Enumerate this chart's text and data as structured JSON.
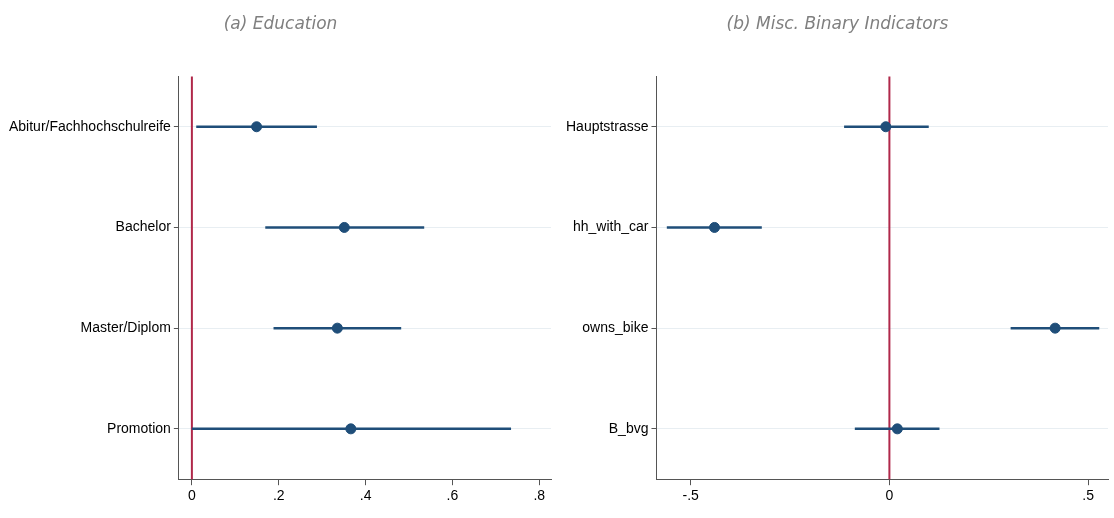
{
  "chart_data": [
    {
      "type": "scatter",
      "orientation": "horizontal",
      "title": "(a) Education",
      "categories": [
        "Abitur/Fachhochschulreife",
        "Bachelor",
        "Master/Diplom",
        "Promotion"
      ],
      "series": [
        {
          "color": "#1f4e79",
          "values": [
            0.149,
            0.351,
            0.335,
            0.366
          ],
          "errors": [
            [
              0.01,
              0.288
            ],
            [
              0.169,
              0.535
            ],
            [
              0.188,
              0.482
            ],
            [
              0.0,
              0.735
            ]
          ]
        }
      ],
      "xlim": [
        -0.03,
        0.827
      ],
      "xticks": [
        {
          "value": 0,
          "label": "0"
        },
        {
          "value": 0.2,
          "label": ".2"
        },
        {
          "value": 0.4,
          "label": ".4"
        },
        {
          "value": 0.6,
          "label": ".6"
        },
        {
          "value": 0.8,
          "label": ".8"
        }
      ],
      "ref_lines": [
        {
          "axis": "x",
          "value": 0,
          "color": "#b0284a"
        }
      ],
      "grid": "y",
      "marker": "circle",
      "legend": false
    },
    {
      "type": "scatter",
      "orientation": "horizontal",
      "title": "(b) Misc. Binary Indicators",
      "categories": [
        "Hauptstrasse",
        "hh_with_car",
        "owns_bike",
        "B_bvg"
      ],
      "series": [
        {
          "color": "#1f4e79",
          "values": [
            -0.009,
            -0.44,
            0.417,
            0.02
          ],
          "errors": [
            [
              -0.114,
              0.099
            ],
            [
              -0.56,
              -0.321
            ],
            [
              0.305,
              0.528
            ],
            [
              -0.087,
              0.126
            ]
          ]
        }
      ],
      "xlim": [
        -0.586,
        0.55
      ],
      "xticks": [
        {
          "value": -0.5,
          "label": "-.5"
        },
        {
          "value": 0,
          "label": "0"
        },
        {
          "value": 0.5,
          "label": ".5"
        }
      ],
      "ref_lines": [
        {
          "axis": "x",
          "value": 0,
          "color": "#b0284a"
        }
      ],
      "grid": "y",
      "marker": "circle",
      "legend": false
    }
  ]
}
